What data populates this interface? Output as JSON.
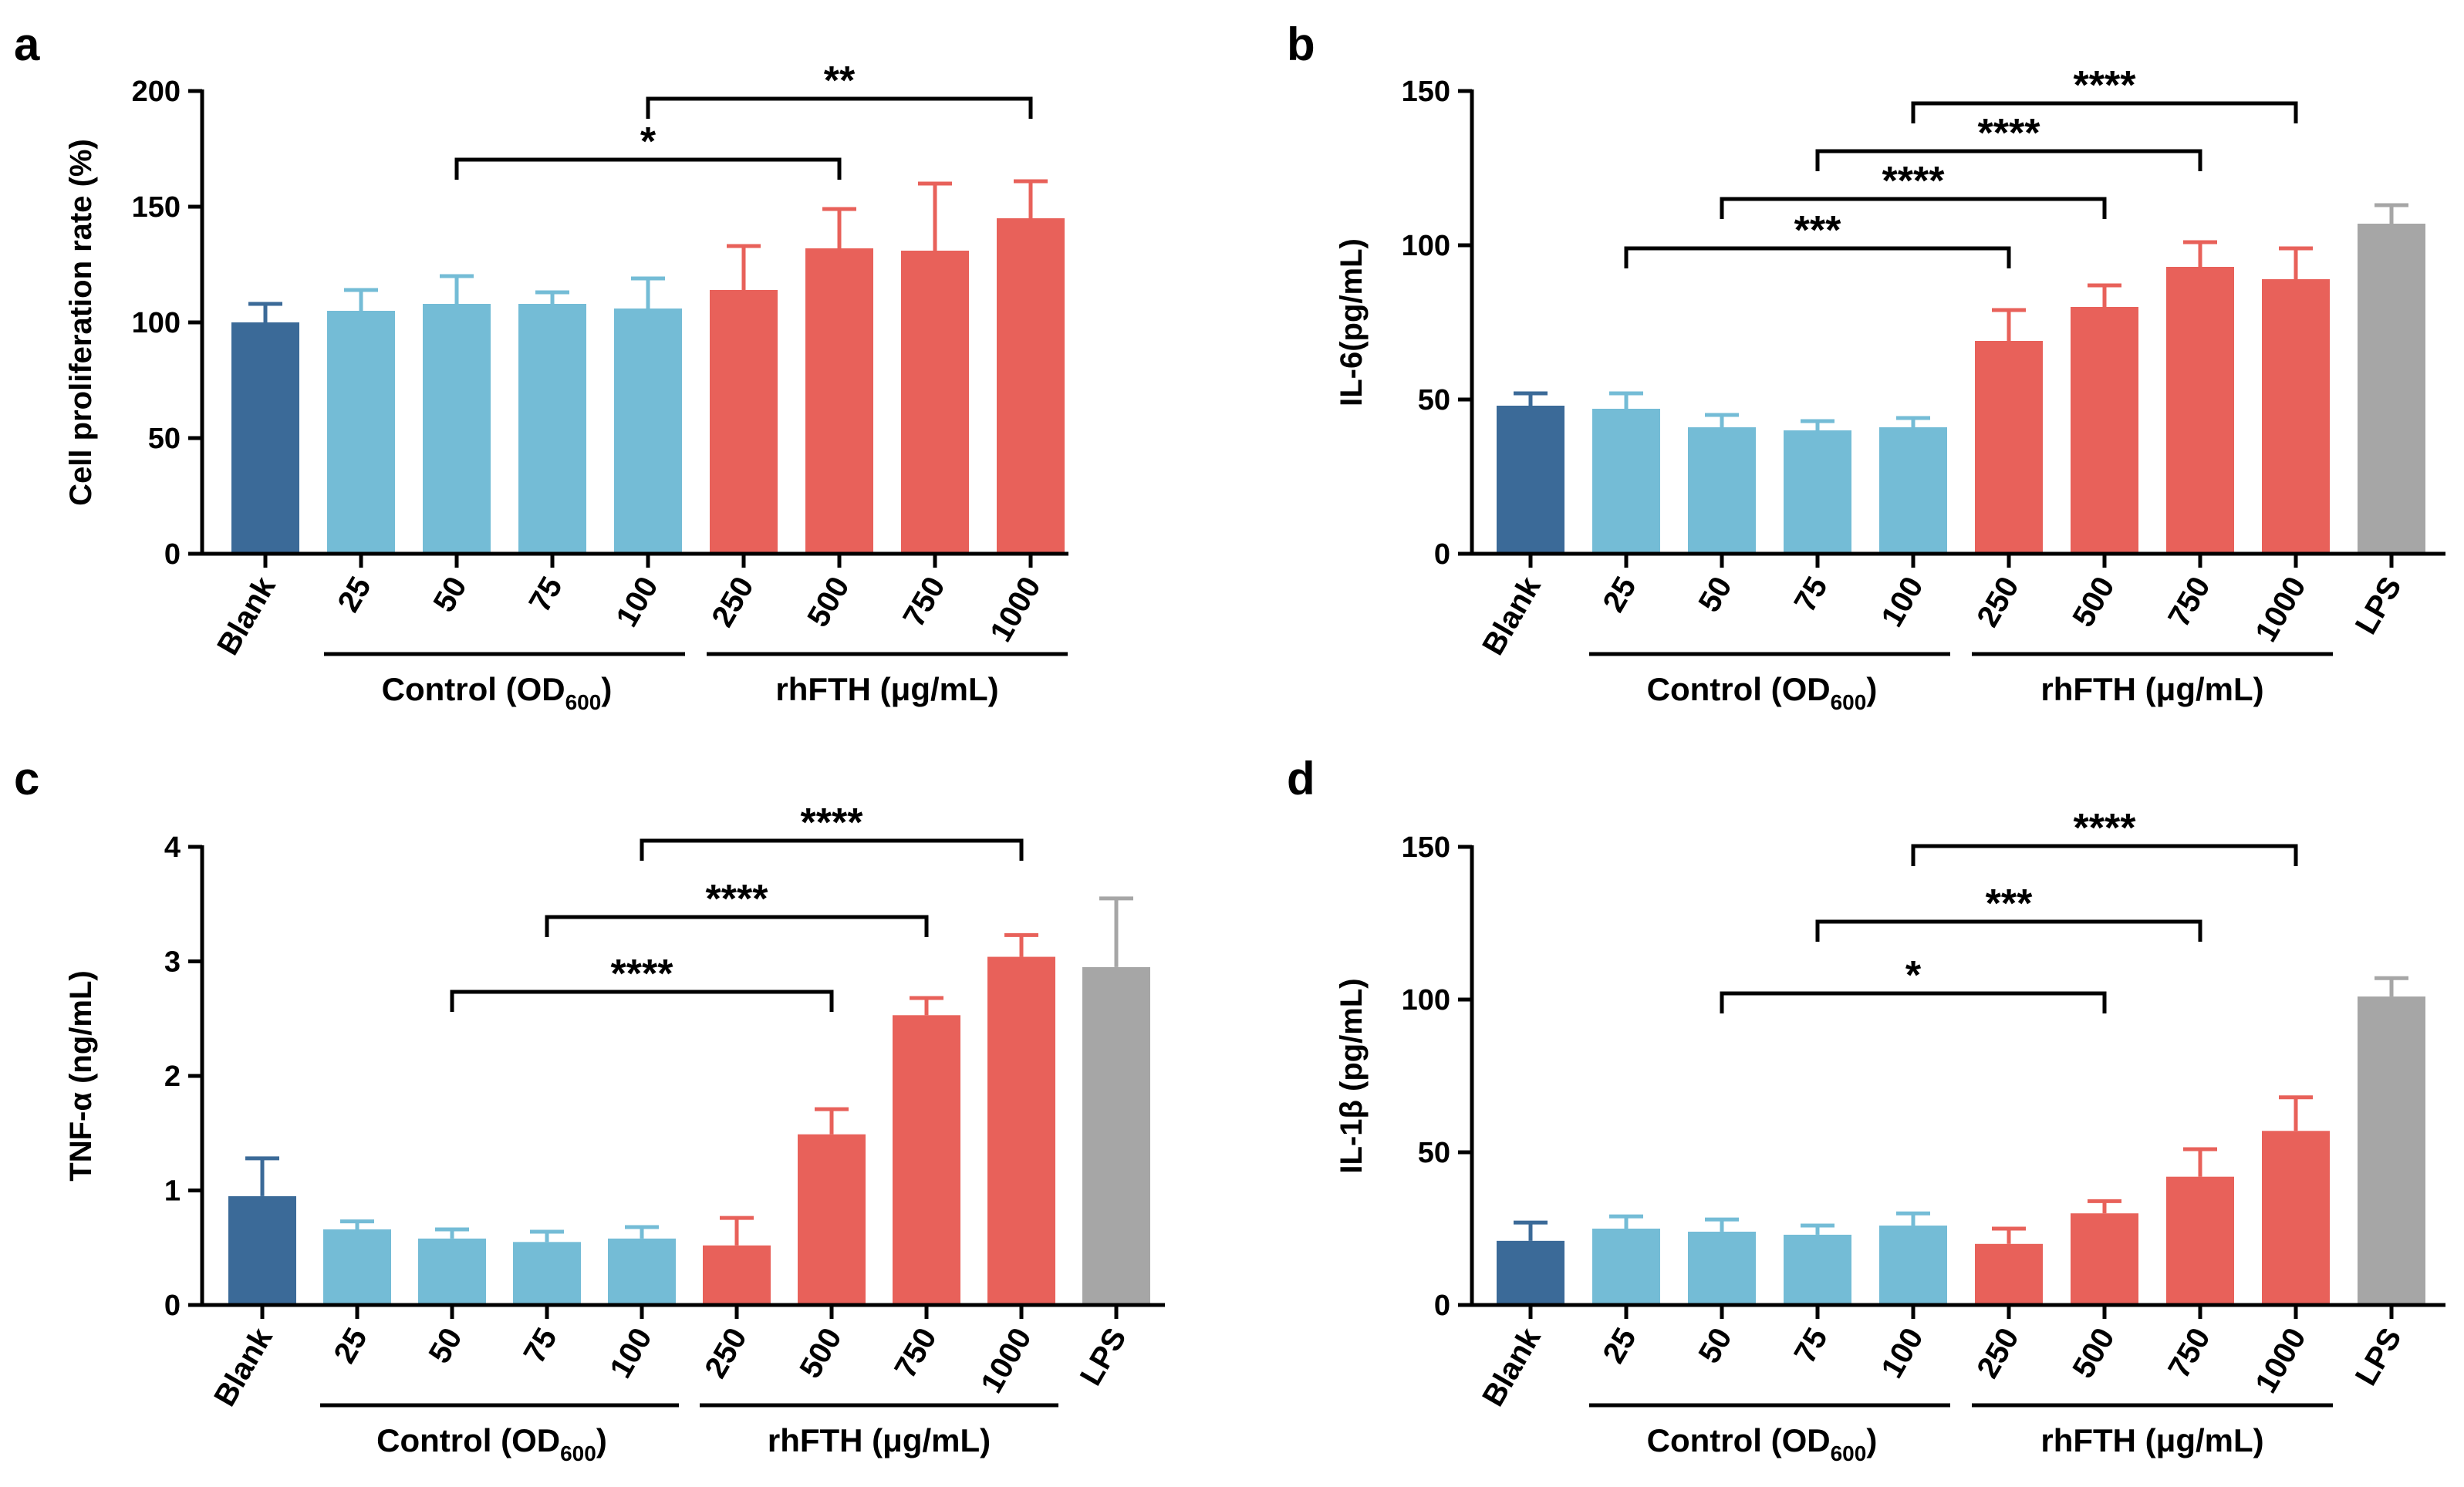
{
  "colors": {
    "blank": "#3b6a98",
    "control": "#74bcd6",
    "rhfth": "#e8615a",
    "lps": "#a6a6a6",
    "axis": "#000000"
  },
  "groups": {
    "control_label": "Control (OD",
    "control_sub": "600",
    "control_close": ")",
    "rhfth_label": "rhFTH (μg/mL)"
  },
  "chart_data": [
    {
      "panel": "a",
      "type": "bar",
      "ylabel": "Cell proliferation rate (%)",
      "ylim": [
        0,
        200
      ],
      "yticks": [
        0,
        50,
        100,
        150,
        200
      ],
      "categories": [
        "Blank",
        "25",
        "50",
        "75",
        "100",
        "250",
        "500",
        "750",
        "1000"
      ],
      "groups": [
        "blank",
        "control",
        "control",
        "control",
        "control",
        "rhfth",
        "rhfth",
        "rhfth",
        "rhfth"
      ],
      "values": [
        100,
        105,
        108,
        108,
        106,
        114,
        132,
        131,
        145
      ],
      "errors": [
        8,
        9,
        12,
        5,
        13,
        19,
        17,
        29,
        16
      ],
      "significance": [
        {
          "from": 2,
          "to": 6,
          "label": "*"
        },
        {
          "from": 4,
          "to": 8,
          "label": "**"
        }
      ]
    },
    {
      "panel": "b",
      "type": "bar",
      "ylabel": "IL-6(pg/mL)",
      "ylim": [
        0,
        150
      ],
      "yticks": [
        0,
        50,
        100,
        150
      ],
      "categories": [
        "Blank",
        "25",
        "50",
        "75",
        "100",
        "250",
        "500",
        "750",
        "1000",
        "LPS"
      ],
      "groups": [
        "blank",
        "control",
        "control",
        "control",
        "control",
        "rhfth",
        "rhfth",
        "rhfth",
        "rhfth",
        "lps"
      ],
      "values": [
        48,
        47,
        41,
        40,
        41,
        69,
        80,
        93,
        89,
        107
      ],
      "errors": [
        4,
        5,
        4,
        3,
        3,
        10,
        7,
        8,
        10,
        6
      ],
      "significance": [
        {
          "from": 1,
          "to": 5,
          "label": "***"
        },
        {
          "from": 2,
          "to": 6,
          "label": "****"
        },
        {
          "from": 3,
          "to": 7,
          "label": "****"
        },
        {
          "from": 4,
          "to": 8,
          "label": "****"
        }
      ]
    },
    {
      "panel": "c",
      "type": "bar",
      "ylabel": "TNF-α (ng/mL)",
      "ylim": [
        0,
        4
      ],
      "yticks": [
        0,
        1,
        2,
        3,
        4
      ],
      "categories": [
        "Blank",
        "25",
        "50",
        "75",
        "100",
        "250",
        "500",
        "750",
        "1000",
        "LPS"
      ],
      "groups": [
        "blank",
        "control",
        "control",
        "control",
        "control",
        "rhfth",
        "rhfth",
        "rhfth",
        "rhfth",
        "lps"
      ],
      "values": [
        0.95,
        0.66,
        0.58,
        0.55,
        0.58,
        0.52,
        1.49,
        2.53,
        3.04,
        2.95
      ],
      "errors": [
        0.33,
        0.07,
        0.08,
        0.09,
        0.1,
        0.24,
        0.22,
        0.15,
        0.19,
        0.6
      ],
      "significance": [
        {
          "from": 2,
          "to": 6,
          "label": "****"
        },
        {
          "from": 3,
          "to": 7,
          "label": "****"
        },
        {
          "from": 4,
          "to": 8,
          "label": "****"
        }
      ]
    },
    {
      "panel": "d",
      "type": "bar",
      "ylabel": "IL-1β (pg/mL)",
      "ylim": [
        0,
        150
      ],
      "yticks": [
        0,
        50,
        100,
        150
      ],
      "categories": [
        "Blank",
        "25",
        "50",
        "75",
        "100",
        "250",
        "500",
        "750",
        "1000",
        "LPS"
      ],
      "groups": [
        "blank",
        "control",
        "control",
        "control",
        "control",
        "rhfth",
        "rhfth",
        "rhfth",
        "rhfth",
        "lps"
      ],
      "values": [
        21,
        25,
        24,
        23,
        26,
        20,
        30,
        42,
        57,
        101
      ],
      "errors": [
        6,
        4,
        4,
        3,
        4,
        5,
        4,
        9,
        11,
        6
      ],
      "significance": [
        {
          "from": 2,
          "to": 6,
          "label": "*"
        },
        {
          "from": 3,
          "to": 7,
          "label": "***"
        },
        {
          "from": 4,
          "to": 8,
          "label": "****"
        }
      ]
    }
  ]
}
